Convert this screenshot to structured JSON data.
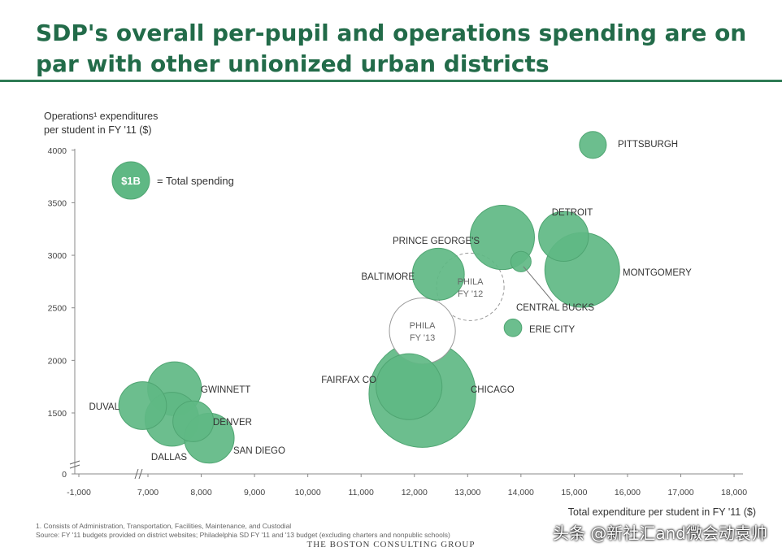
{
  "page": {
    "title": "SDP's overall per-pupil and operations spending are on par with other unionized urban districts",
    "footnote_1": "1. Consists of Administration, Transportation, Facilities, Maintenance, and Custodial",
    "footnote_2": "Source: FY '11 budgets provided on district websites; Philadelphia SD FY '11 and '13 budget (excluding charters and nonpublic schools)",
    "logo": "THE BOSTON CONSULTING GROUP",
    "watermark": "头条 @新社汇and微会动袁帅"
  },
  "colors": {
    "bubble": "#5fb884",
    "bubble_stroke": "#4fa572",
    "title": "#226b49",
    "rule": "#2e7b55"
  },
  "chart_data": {
    "type": "scatter",
    "title": "",
    "ylabel_lines": [
      "Operations¹ expenditures",
      "per student in FY '11 ($)"
    ],
    "xlabel": "Total expenditure per student in FY '11 ($)",
    "x_ticks": [
      "-1,000",
      "7,000",
      "8,000",
      "9,000",
      "10,000",
      "11,000",
      "12,000",
      "13,000",
      "14,000",
      "15,000",
      "16,000",
      "17,000",
      "18,000"
    ],
    "y_ticks": [
      "0",
      "1500",
      "2000",
      "2500",
      "3000",
      "3500",
      "4000"
    ],
    "xlim": [
      6000,
      18000
    ],
    "ylim": [
      1000,
      4000
    ],
    "axis_breaks": true,
    "legend": {
      "label": "$1B",
      "text": "= Total spending",
      "position": "top-left"
    },
    "points": [
      {
        "name": "PITTSBURGH",
        "x": 15350,
        "y": 4050,
        "size": 0.35
      },
      {
        "name": "DETROIT",
        "x": 14800,
        "y": 3180,
        "size": 1.2
      },
      {
        "name": "PRINCE GEORGE'S",
        "x": 13650,
        "y": 3170,
        "size": 2.0
      },
      {
        "name": "MONTGOMERY",
        "x": 15150,
        "y": 2860,
        "size": 2.7
      },
      {
        "name": "CENTRAL BUCKS",
        "x": 14000,
        "y": 2940,
        "size": 0.2
      },
      {
        "name": "BALTIMORE",
        "x": 12450,
        "y": 2820,
        "size": 1.3
      },
      {
        "name": "PHILA FY '12",
        "x": 13050,
        "y": 2700,
        "size": 2.2,
        "style": "dashed"
      },
      {
        "name": "ERIE CITY",
        "x": 13850,
        "y": 2310,
        "size": 0.15
      },
      {
        "name": "PHILA FY '13",
        "x": 12150,
        "y": 2280,
        "size": 2.1,
        "style": "outline"
      },
      {
        "name": "FAIRFAX CO",
        "x": 11900,
        "y": 1750,
        "size": 2.1
      },
      {
        "name": "CHICAGO",
        "x": 12150,
        "y": 1680,
        "size": 5.5
      },
      {
        "name": "GWINNETT",
        "x": 7500,
        "y": 1730,
        "size": 1.4
      },
      {
        "name": "DUVAL",
        "x": 6900,
        "y": 1570,
        "size": 1.1
      },
      {
        "name": "DALLAS",
        "x": 7450,
        "y": 1440,
        "size": 1.4
      },
      {
        "name": "DENVER",
        "x": 7850,
        "y": 1420,
        "size": 0.8
      },
      {
        "name": "SAN DIEGO",
        "x": 8150,
        "y": 1260,
        "size": 1.2
      }
    ]
  }
}
